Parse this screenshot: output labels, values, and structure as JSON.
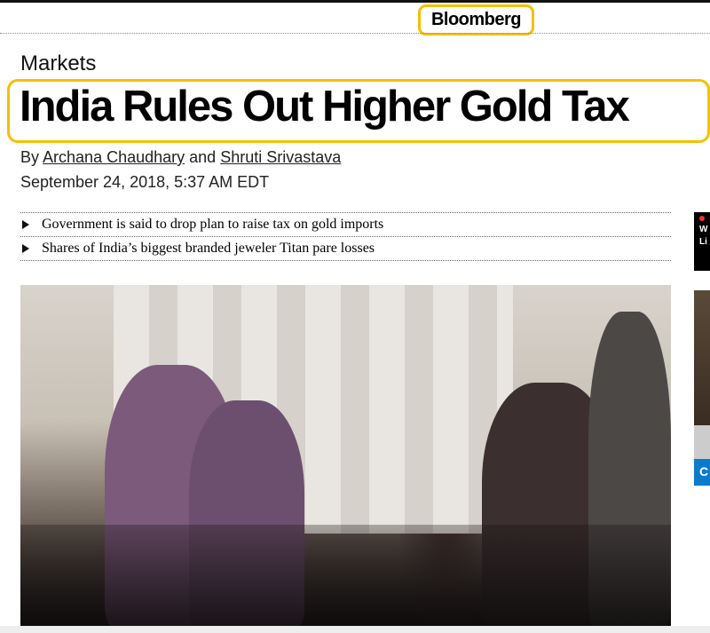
{
  "header": {
    "logo": "Bloomberg"
  },
  "article": {
    "section": "Markets",
    "headline": "India Rules Out Higher Gold Tax",
    "byline_prefix": "By",
    "authors": [
      "Archana Chaudhary",
      "Shruti Srivastava"
    ],
    "byline_joiner": "and",
    "date": "September 24, 2018, 5:37 AM EDT",
    "bullets": [
      "Government is said to drop plan to raise tax on gold imports",
      "Shares of India’s biggest branded jeweler Titan pare losses"
    ]
  },
  "sidebar": {
    "line1": "W",
    "line2": "Li",
    "button": "C"
  },
  "colors": {
    "highlight": "#f5c000",
    "sidebar_button": "#0a7acc"
  }
}
